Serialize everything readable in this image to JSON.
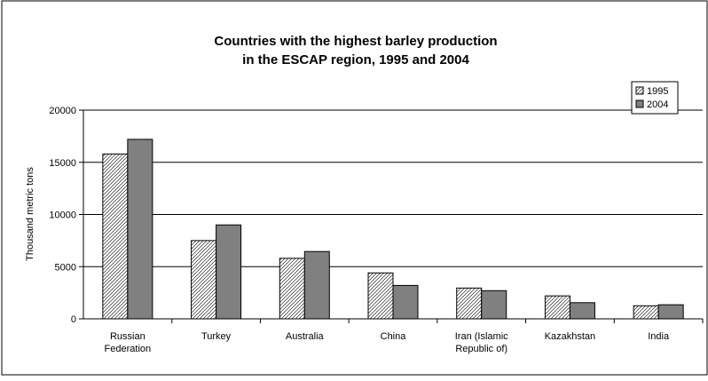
{
  "chart_data": {
    "type": "bar",
    "title_line1": "Countries with the highest barley production",
    "title_line2": "in the ESCAP region, 1995 and 2004",
    "ylabel": "Thousand metric tons",
    "xlabel": "",
    "ylim": [
      0,
      20000
    ],
    "yticks": [
      0,
      5000,
      10000,
      15000,
      20000
    ],
    "grid": true,
    "legend_position": "top-right",
    "categories": [
      [
        "Russian",
        "Federation"
      ],
      [
        "Turkey"
      ],
      [
        "Australia"
      ],
      [
        "China"
      ],
      [
        "Iran (Islamic",
        "Republic of)"
      ],
      [
        "Kazakhstan"
      ],
      [
        "India"
      ]
    ],
    "series": [
      {
        "name": "1995",
        "color": "#ffffff",
        "pattern": "diagonal-hatch",
        "values": [
          15800,
          7500,
          5800,
          4400,
          2950,
          2200,
          1250
        ]
      },
      {
        "name": "2004",
        "color": "#808080",
        "pattern": "solid",
        "values": [
          17200,
          9000,
          6450,
          3200,
          2700,
          1550,
          1350
        ]
      }
    ]
  }
}
